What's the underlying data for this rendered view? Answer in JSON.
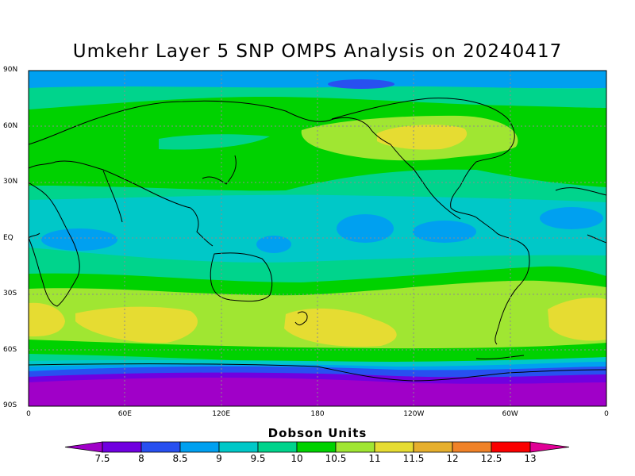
{
  "title": "Umkehr Layer 5 SNP OMPS Analysis on 20240417",
  "y_axis": {
    "ticks": [
      {
        "label": "90N",
        "lat": 90
      },
      {
        "label": "60N",
        "lat": 60
      },
      {
        "label": "30N",
        "lat": 30
      },
      {
        "label": "EQ",
        "lat": 0
      },
      {
        "label": "30S",
        "lat": -30
      },
      {
        "label": "60S",
        "lat": -60
      },
      {
        "label": "90S",
        "lat": -90
      }
    ]
  },
  "x_axis": {
    "ticks": [
      {
        "label": "0",
        "lon": 0
      },
      {
        "label": "60E",
        "lon": 60
      },
      {
        "label": "120E",
        "lon": 120
      },
      {
        "label": "180",
        "lon": 180
      },
      {
        "label": "120W",
        "lon": 240
      },
      {
        "label": "60W",
        "lon": 300
      },
      {
        "label": "0",
        "lon": 360
      }
    ]
  },
  "colorbar": {
    "title": "Dobson Units",
    "labels": [
      "7.5",
      "8",
      "8.5",
      "9",
      "9.5",
      "10",
      "10.5",
      "11",
      "11.5",
      "12",
      "12.5",
      "13"
    ],
    "colors": [
      "#a000c8",
      "#7000e0",
      "#2850f0",
      "#00a0f0",
      "#00c8c8",
      "#00d48c",
      "#00d200",
      "#a0e632",
      "#e6dc32",
      "#e6af2d",
      "#f08228",
      "#fa0000",
      "#e00096"
    ],
    "under_color": "#a000c8",
    "over_color": "#e00096"
  },
  "palette": {
    "c75": "#a000c8",
    "c80": "#7000e0",
    "c85": "#2850f0",
    "c90": "#00a0f0",
    "c95": "#00c8c8",
    "c100": "#00d48c",
    "c105": "#00d200",
    "c110": "#a0e632",
    "c115": "#e6dc32"
  }
}
